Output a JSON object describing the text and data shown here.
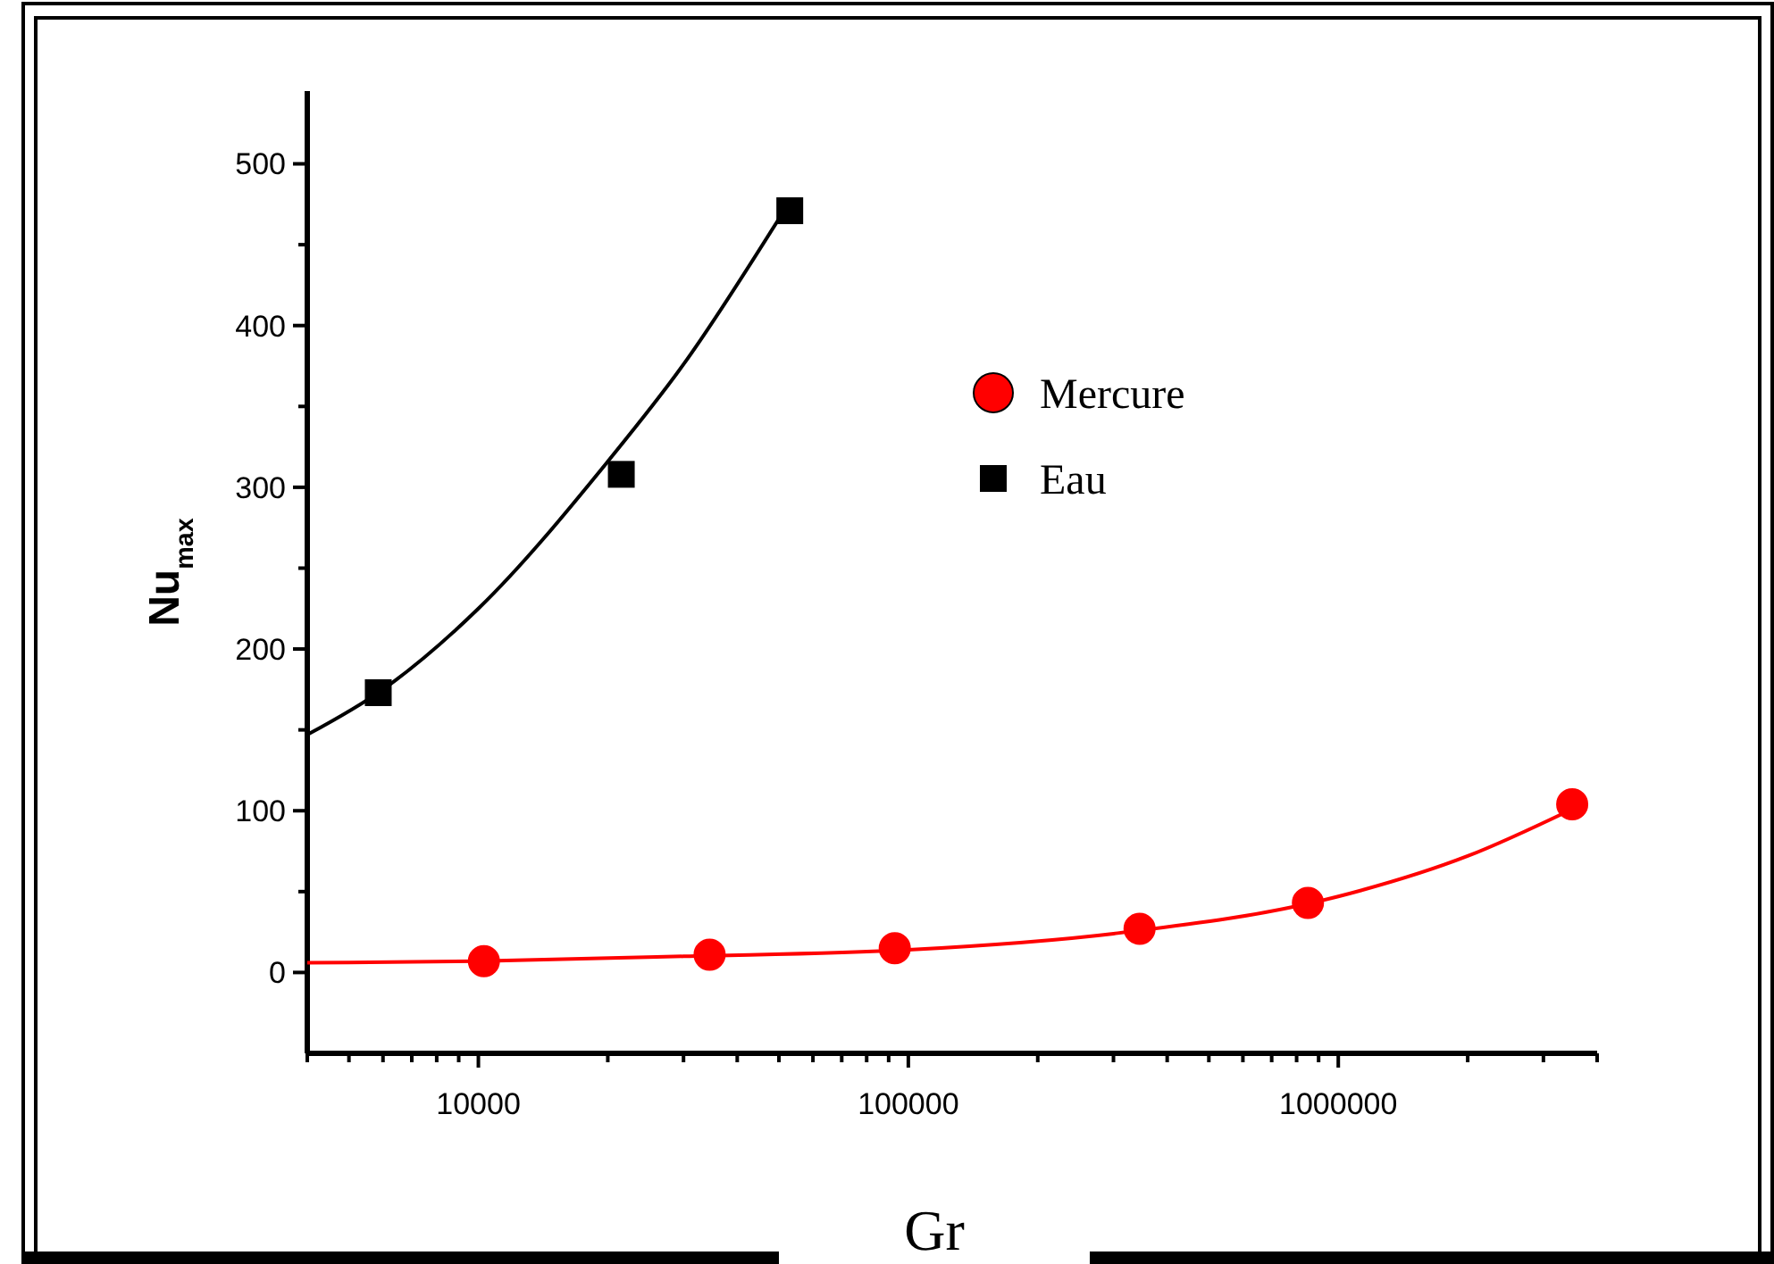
{
  "chart_data": {
    "type": "scatter",
    "xlabel": "Gr",
    "ylabel": "Nu$_{max}$",
    "log": "x",
    "legend": "top right",
    "grid": false,
    "xlim": [
      4000,
      4000000
    ],
    "ylim": [
      -50,
      545
    ],
    "xticks": [
      {
        "value": 4000,
        "label": null
      },
      {
        "value": 5000,
        "label": null
      },
      {
        "value": 6000,
        "label": null
      },
      {
        "value": 7000,
        "label": null
      },
      {
        "value": 8000,
        "label": null
      },
      {
        "value": 9000,
        "label": null
      },
      10000,
      {
        "value": 20000,
        "label": null
      },
      {
        "value": 30000,
        "label": null
      },
      {
        "value": 40000,
        "label": null
      },
      {
        "value": 50000,
        "label": null
      },
      {
        "value": 60000,
        "label": null
      },
      {
        "value": 70000,
        "label": null
      },
      {
        "value": 80000,
        "label": null
      },
      {
        "value": 90000,
        "label": null
      },
      100000,
      {
        "value": 200000,
        "label": null
      },
      {
        "value": 300000,
        "label": null
      },
      {
        "value": 400000,
        "label": null
      },
      {
        "value": 500000,
        "label": null
      },
      {
        "value": 600000,
        "label": null
      },
      {
        "value": 700000,
        "label": null
      },
      {
        "value": 800000,
        "label": null
      },
      {
        "value": 900000,
        "label": null
      },
      1000000,
      {
        "value": 2000000,
        "label": null
      },
      {
        "value": 3000000,
        "label": null
      },
      {
        "value": 4000000,
        "label": null
      }
    ],
    "yticks": [
      0,
      {
        "value": 50,
        "label": null
      },
      100,
      {
        "value": 150,
        "label": null
      },
      200,
      {
        "value": 250,
        "label": null
      },
      300,
      {
        "value": 350,
        "label": null
      },
      400,
      {
        "value": 450,
        "label": null
      },
      500
    ],
    "series": [
      {
        "name": "Mercure",
        "marker": "circle",
        "color": "#ff0000",
        "x": [
          10300,
          34500,
          93000,
          345000,
          850000,
          3500000
        ],
        "values": [
          7,
          11,
          15,
          27,
          43,
          104
        ]
      },
      {
        "name": "Eau",
        "marker": "square",
        "color": "#000000",
        "x": [
          5850,
          21500,
          53000
        ],
        "values": [
          173,
          308,
          471
        ]
      },
      {
        "type": "line",
        "marker": "none",
        "color": "#ff0000",
        "x": [
          4000,
          10000,
          30000,
          100000,
          300000,
          1000000,
          2000000,
          3500000
        ],
        "values": [
          6,
          7,
          10,
          14,
          24,
          47,
          72,
          101
        ]
      },
      {
        "type": "line",
        "marker": "none",
        "color": "#000000",
        "x": [
          4000,
          6000,
          10000,
          20000,
          30000,
          50000
        ],
        "values": [
          147,
          175,
          225,
          316,
          376,
          466
        ]
      }
    ]
  }
}
